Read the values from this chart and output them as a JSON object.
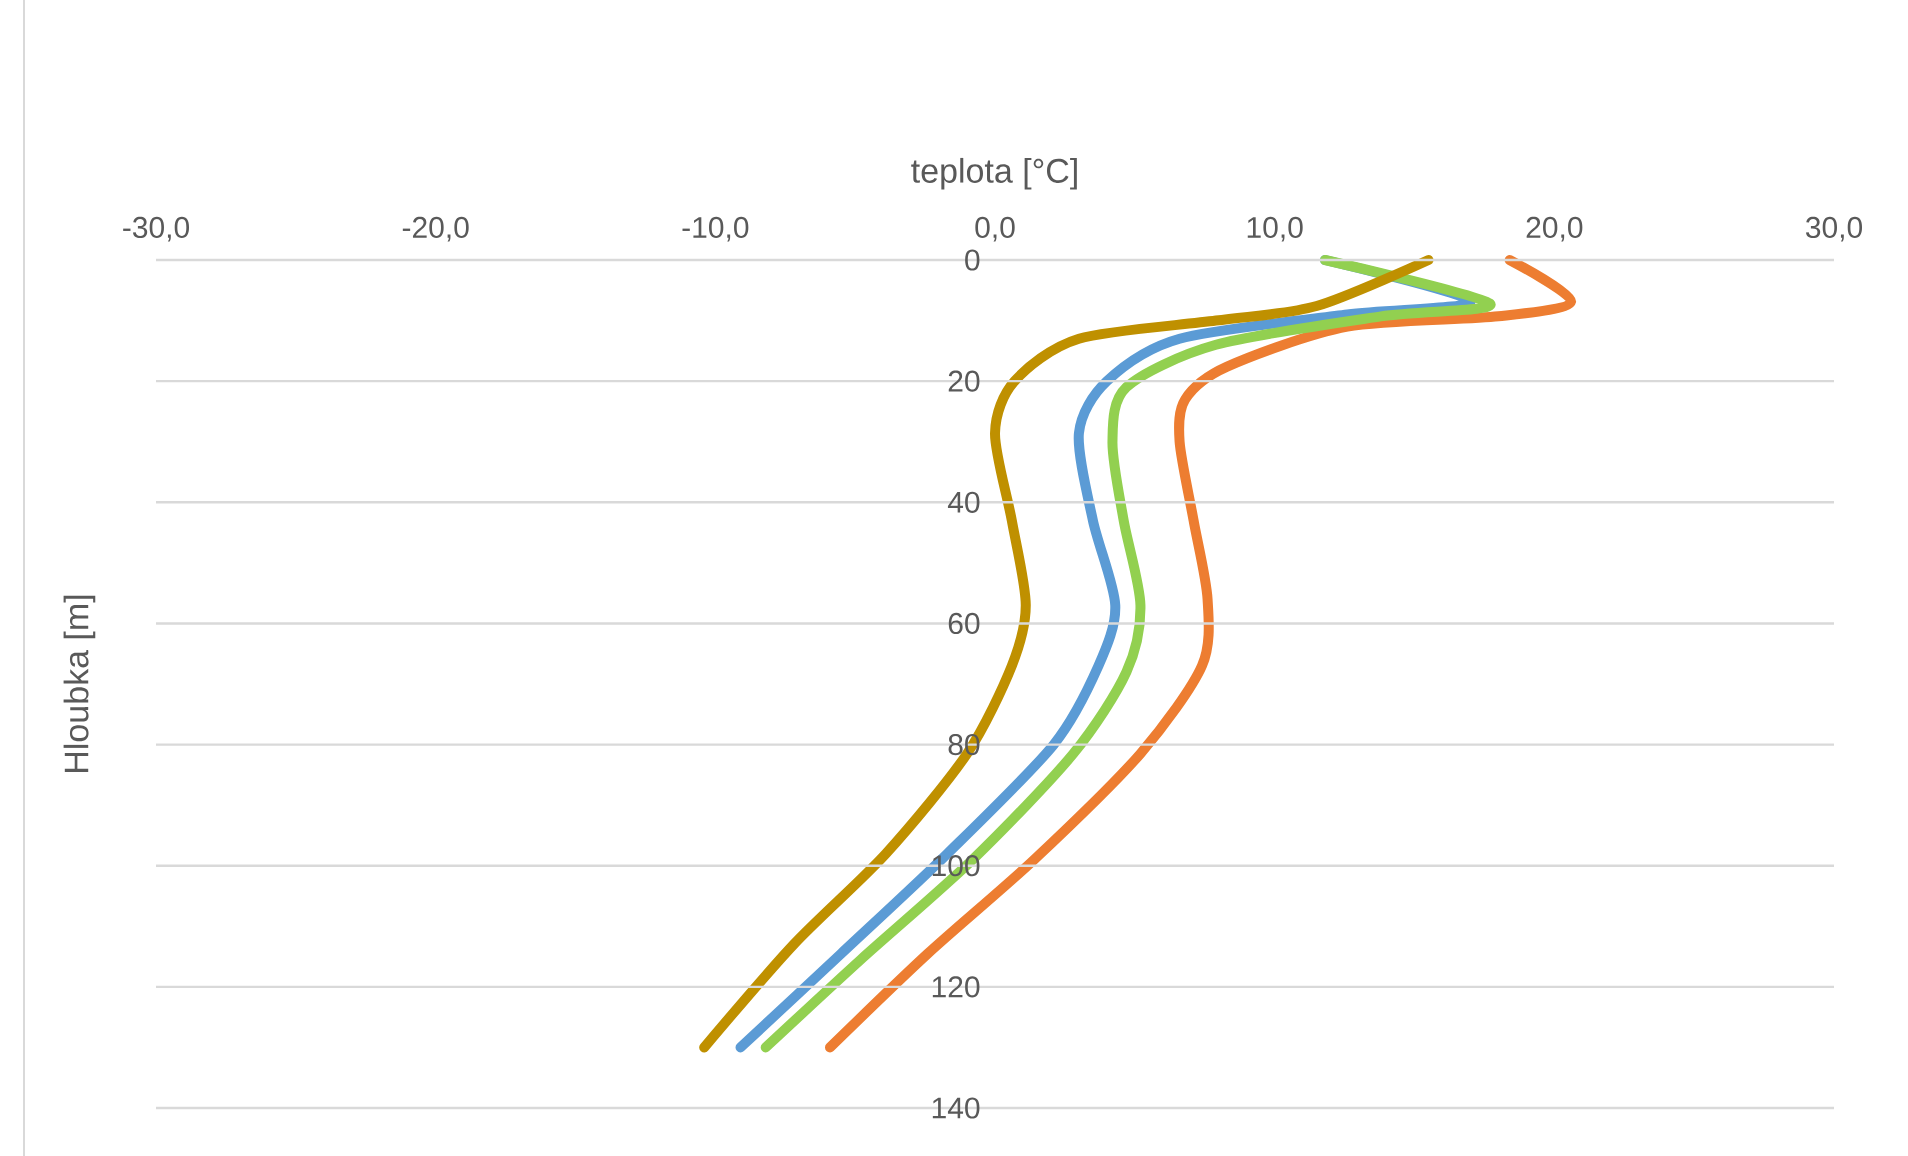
{
  "chart_data": {
    "type": "line",
    "xlabel": "teplota  [°C]",
    "ylabel": "Hloubka  [m]",
    "xlim": [
      -30,
      30
    ],
    "xticks": [
      {
        "value": -30,
        "label": "-30,0"
      },
      {
        "value": -20,
        "label": "-20,0"
      },
      {
        "value": -10,
        "label": "-10,0"
      },
      {
        "value": 0,
        "label": "0,0"
      },
      {
        "value": 10,
        "label": "10,0"
      },
      {
        "value": 20,
        "label": "20,0"
      },
      {
        "value": 30,
        "label": "30,0"
      }
    ],
    "ylim": [
      140,
      0
    ],
    "yticks": [
      0,
      20,
      40,
      60,
      80,
      100,
      120,
      140
    ],
    "grid": "y",
    "marker": "none",
    "line_style": "solid",
    "series": [
      {
        "color": "#5b9bd5",
        "x": [
          11.8,
          17.0,
          12.6,
          6.6,
          4.0,
          3.0,
          3.5,
          4.3,
          3.7,
          2.1,
          -1.7,
          -5.5,
          -9.1
        ],
        "values": [
          0,
          6.8,
          9,
          13,
          20,
          28.6,
          43,
          57,
          67,
          80,
          98,
          114.5,
          130
        ]
      },
      {
        "color": "#ed7d31",
        "x": [
          18.4,
          20.6,
          18.0,
          12.6,
          8.3,
          6.8,
          6.6,
          7.1,
          7.6,
          7.4,
          5.2,
          1.4,
          -2.4,
          -5.9
        ],
        "values": [
          0,
          6.8,
          9.3,
          11,
          17.6,
          23,
          30,
          43,
          56,
          67,
          81.5,
          99,
          114.5,
          130
        ]
      },
      {
        "color": "#92d050",
        "x": [
          11.8,
          17.7,
          13.8,
          7.9,
          4.7,
          4.2,
          4.6,
          5.2,
          4.7,
          2.8,
          -0.8,
          -4.8,
          -8.2
        ],
        "values": [
          0,
          7.2,
          9.3,
          14,
          21,
          30,
          43,
          57,
          68,
          81.5,
          99,
          115.5,
          130
        ]
      },
      {
        "color": "#bf9000",
        "x": [
          15.5,
          11.5,
          7.9,
          3.0,
          0.7,
          0.0,
          0.6,
          1.1,
          0.6,
          -1.0,
          -3.9,
          -7.2,
          -10.4
        ],
        "values": [
          0,
          7.6,
          10,
          13,
          20,
          28.6,
          43,
          57,
          67,
          81.5,
          98,
          113,
          130
        ]
      }
    ]
  }
}
